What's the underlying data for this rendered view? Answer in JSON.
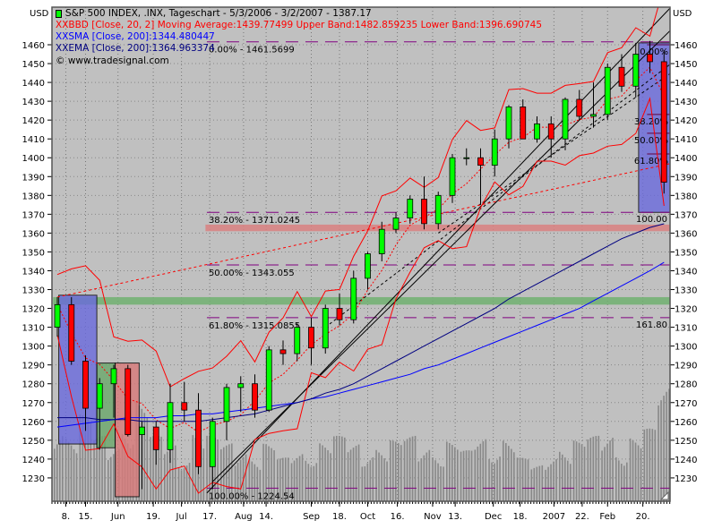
{
  "chart_data": {
    "type": "candlestick",
    "currency_label": "USD",
    "title": "S&P 500 INDEX, .INX, Tageschart - 5/3/2006 - 3/2/2007 - 1387.17",
    "legend": [
      {
        "marker": "XX",
        "text": "BBD [Close, 20, 2] Moving Average:1439.77499 Upper Band:1482.859235 Lower Band:1396.690745",
        "color": "#ff0000"
      },
      {
        "marker": "XX",
        "text": "SMA [Close, 200]:1344.480447",
        "color": "#0000ff"
      },
      {
        "marker": "XX",
        "text": "EMA [Close, 200]:1364.963374",
        "color": "#000080"
      },
      {
        "marker": "",
        "text": "© www.tradesignal.com",
        "color": "#000000"
      }
    ],
    "ylim": [
      1220,
      1480
    ],
    "yticks": [
      1230,
      1240,
      1250,
      1260,
      1270,
      1280,
      1290,
      1300,
      1310,
      1320,
      1330,
      1340,
      1350,
      1360,
      1370,
      1380,
      1390,
      1400,
      1410,
      1420,
      1430,
      1440,
      1450,
      1460
    ],
    "xtick_labels": [
      {
        "week": 0.6,
        "label": "8."
      },
      {
        "week": 2.0,
        "label": "15."
      },
      {
        "week": 4.3,
        "label": "Jun"
      },
      {
        "week": 6.8,
        "label": "19."
      },
      {
        "week": 8.8,
        "label": "Jul"
      },
      {
        "week": 10.8,
        "label": "17."
      },
      {
        "week": 13.2,
        "label": "Aug"
      },
      {
        "week": 14.8,
        "label": "14."
      },
      {
        "week": 18.0,
        "label": "Sep"
      },
      {
        "week": 20.0,
        "label": "18."
      },
      {
        "week": 22.0,
        "label": "Oct"
      },
      {
        "week": 24.1,
        "label": "16."
      },
      {
        "week": 26.6,
        "label": "Nov"
      },
      {
        "week": 28.2,
        "label": "13."
      },
      {
        "week": 30.9,
        "label": "Dec"
      },
      {
        "week": 32.8,
        "label": "18."
      },
      {
        "week": 35.2,
        "label": "2007"
      },
      {
        "week": 37.2,
        "label": "22."
      },
      {
        "week": 39.0,
        "label": "Feb"
      },
      {
        "week": 41.5,
        "label": "20."
      }
    ],
    "ohlc_weekly": [
      [
        1310,
        1326,
        1305,
        1322
      ],
      [
        1322,
        1326,
        1290,
        1292
      ],
      [
        1292,
        1295,
        1255,
        1267
      ],
      [
        1267,
        1283,
        1245,
        1280
      ],
      [
        1280,
        1290,
        1262,
        1288
      ],
      [
        1288,
        1290,
        1252,
        1253
      ],
      [
        1253,
        1260,
        1224,
        1257
      ],
      [
        1257,
        1260,
        1237,
        1245
      ],
      [
        1245,
        1280,
        1238,
        1270
      ],
      [
        1270,
        1281,
        1260,
        1266
      ],
      [
        1266,
        1275,
        1232,
        1236
      ],
      [
        1236,
        1262,
        1224,
        1260
      ],
      [
        1260,
        1280,
        1250,
        1278
      ],
      [
        1278,
        1284,
        1265,
        1280
      ],
      [
        1280,
        1285,
        1262,
        1266
      ],
      [
        1266,
        1300,
        1265,
        1298
      ],
      [
        1298,
        1303,
        1290,
        1296
      ],
      [
        1296,
        1312,
        1292,
        1310
      ],
      [
        1310,
        1315,
        1290,
        1299
      ],
      [
        1299,
        1322,
        1296,
        1320
      ],
      [
        1320,
        1328,
        1311,
        1314
      ],
      [
        1314,
        1340,
        1312,
        1336
      ],
      [
        1336,
        1350,
        1330,
        1349
      ],
      [
        1349,
        1366,
        1345,
        1362
      ],
      [
        1362,
        1371,
        1360,
        1368
      ],
      [
        1368,
        1380,
        1365,
        1378
      ],
      [
        1378,
        1390,
        1362,
        1365
      ],
      [
        1365,
        1382,
        1362,
        1380
      ],
      [
        1380,
        1402,
        1376,
        1400
      ],
      [
        1400,
        1405,
        1396,
        1400
      ],
      [
        1400,
        1405,
        1375,
        1396
      ],
      [
        1396,
        1415,
        1390,
        1410
      ],
      [
        1410,
        1428,
        1405,
        1427
      ],
      [
        1427,
        1431,
        1410,
        1410
      ],
      [
        1410,
        1422,
        1408,
        1418
      ],
      [
        1418,
        1422,
        1400,
        1410
      ],
      [
        1410,
        1432,
        1404,
        1431
      ],
      [
        1431,
        1436,
        1420,
        1422
      ],
      [
        1422,
        1440,
        1416,
        1423
      ],
      [
        1423,
        1450,
        1420,
        1448
      ],
      [
        1448,
        1455,
        1435,
        1438
      ],
      [
        1438,
        1461,
        1432,
        1455
      ],
      [
        1455,
        1462,
        1445,
        1451
      ],
      [
        1451,
        1457,
        1381,
        1387
      ]
    ],
    "volume_relative": [
      55,
      50,
      60,
      45,
      40,
      60,
      70,
      45,
      40,
      35,
      50,
      45,
      40,
      38,
      35,
      40,
      30,
      35,
      38,
      42,
      45,
      40,
      38,
      40,
      42,
      45,
      40,
      38,
      42,
      35,
      45,
      42,
      45,
      30,
      25,
      35,
      40,
      42,
      45,
      48,
      40,
      45,
      50,
      80
    ],
    "sma200": [
      1257,
      1258,
      1259,
      1260,
      1261,
      1262,
      1262,
      1262,
      1263,
      1263,
      1264,
      1264,
      1265,
      1266,
      1267,
      1268,
      1269,
      1270,
      1272,
      1273,
      1275,
      1277,
      1279,
      1281,
      1283,
      1285,
      1288,
      1290,
      1293,
      1296,
      1299,
      1302,
      1305,
      1308,
      1311,
      1314,
      1317,
      1320,
      1324,
      1328,
      1332,
      1336,
      1340,
      1344.48
    ],
    "ema200": [
      1262,
      1262,
      1262,
      1261,
      1261,
      1261,
      1260,
      1260,
      1260,
      1260,
      1260,
      1261,
      1262,
      1263,
      1264,
      1266,
      1268,
      1270,
      1272,
      1275,
      1277,
      1280,
      1284,
      1288,
      1292,
      1296,
      1300,
      1304,
      1308,
      1312,
      1316,
      1320,
      1325,
      1329,
      1333,
      1337,
      1341,
      1345,
      1349,
      1353,
      1357,
      1360,
      1363,
      1364.96
    ],
    "bollinger": {
      "period": 20,
      "stddev": 2
    },
    "fib_levels": [
      {
        "label": "0.00% - 1461.5699",
        "price": 1461.5699
      },
      {
        "label": "38.20% - 1371.0245",
        "price": 1371.0245
      },
      {
        "label": "50.00% - 1343.055",
        "price": 1343.055
      },
      {
        "label": "61.80% - 1315.0855",
        "price": 1315.0855
      },
      {
        "label": "100.00% - 1224.54",
        "price": 1224.54
      }
    ],
    "fib_extension_labels": [
      {
        "label": "100.00",
        "price": 1371.0245
      },
      {
        "label": "161.80",
        "price": 1315.0855
      }
    ],
    "retracement_box_labels": [
      {
        "label": "0.00%",
        "price": 1460
      },
      {
        "label": "38.20%",
        "price": 1423
      },
      {
        "label": "50.00%",
        "price": 1413
      },
      {
        "label": "61.80%",
        "price": 1402
      }
    ],
    "zones": [
      {
        "color": "#d98080",
        "from_week": 10.5,
        "to_week": 43.5,
        "low": 1361,
        "high": 1364.5
      },
      {
        "color": "#70b070",
        "from_week": -0.3,
        "to_week": 43.5,
        "low": 1322,
        "high": 1326
      }
    ],
    "boxes": [
      {
        "color": "#6a6add",
        "from_week": 0.1,
        "to_week": 2.8,
        "low": 1248,
        "high": 1327
      },
      {
        "color": "#6aa86a",
        "from_week": 2.8,
        "to_week": 4.1,
        "low": 1246,
        "high": 1291
      },
      {
        "color": "#d97a7a",
        "from_week": 4.1,
        "to_week": 5.8,
        "low": 1220,
        "high": 1291
      },
      {
        "color": "#6a6add",
        "from_week": 41.2,
        "to_week": 43.5,
        "low": 1371,
        "high": 1461
      }
    ],
    "trend_lines": [
      {
        "from": [
          10.6,
          1222
        ],
        "to": [
          43.5,
          1480
        ],
        "style": "solid"
      },
      {
        "from": [
          11,
          1228
        ],
        "to": [
          43.5,
          1468
        ],
        "style": "solid"
      },
      {
        "from": [
          19,
          1310
        ],
        "to": [
          43.5,
          1450
        ],
        "style": "dashed"
      },
      {
        "from": [
          27,
          1360
        ],
        "to": [
          43.5,
          1445
        ],
        "style": "dashed"
      },
      {
        "from": [
          0,
          1326
        ],
        "to": [
          43.5,
          1397
        ],
        "style": "dashed-red"
      }
    ],
    "colors": {
      "background": "#c0c0c0",
      "up": "#00ff00",
      "down": "#ff0000",
      "bollinger": "#ff0000",
      "sma": "#0000ff",
      "ema": "#000080",
      "fib": "#800080",
      "volume": "#888888"
    }
  }
}
